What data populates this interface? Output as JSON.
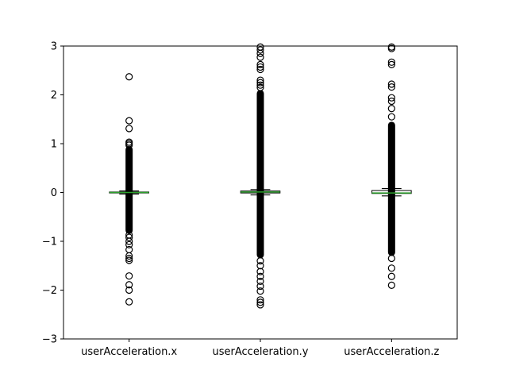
{
  "chart_data": {
    "type": "box",
    "categories": [
      "userAcceleration.x",
      "userAcceleration.y",
      "userAcceleration.z"
    ],
    "ylim": [
      -3,
      3
    ],
    "yticks": [
      -3,
      -2,
      -1,
      0,
      1,
      2,
      3
    ],
    "ytick_labels": [
      "−3",
      "−2",
      "−1",
      "0",
      "1",
      "2",
      "3"
    ],
    "grid": false,
    "colors": {
      "median": "#2ca02c",
      "box": "#000000",
      "flier": "#000000"
    },
    "boxes": [
      {
        "q1": -0.01,
        "median": 0.0,
        "q3": 0.01,
        "whisker_low": -0.03,
        "whisker_high": 0.03,
        "outlier_band": [
          -0.85,
          0.95
        ],
        "outliers": [
          2.37,
          1.47,
          1.31,
          1.03,
          1.0,
          0.97,
          -0.87,
          -0.92,
          -1.0,
          -1.07,
          -1.17,
          -1.3,
          -1.35,
          -1.39,
          -1.71,
          -1.89,
          -2.0,
          -2.24
        ]
      },
      {
        "q1": -0.01,
        "median": 0.01,
        "q3": 0.03,
        "whisker_low": -0.05,
        "whisker_high": 0.06,
        "outlier_band": [
          -1.35,
          2.1
        ],
        "outliers": [
          2.98,
          2.92,
          2.85,
          2.77,
          2.62,
          2.57,
          2.52,
          2.3,
          2.25,
          2.2,
          2.15,
          -1.4,
          -1.5,
          -1.62,
          -1.72,
          -1.82,
          -1.92,
          -2.02,
          -2.2,
          -2.25,
          -2.3
        ]
      },
      {
        "q1": -0.02,
        "median": -0.01,
        "q3": 0.04,
        "whisker_low": -0.07,
        "whisker_high": 0.08,
        "outlier_band": [
          -1.3,
          1.45
        ],
        "outliers": [
          2.98,
          2.95,
          2.67,
          2.62,
          2.22,
          2.16,
          1.94,
          1.87,
          1.72,
          1.55,
          -1.35,
          -1.55,
          -1.72,
          -1.9
        ]
      }
    ]
  }
}
